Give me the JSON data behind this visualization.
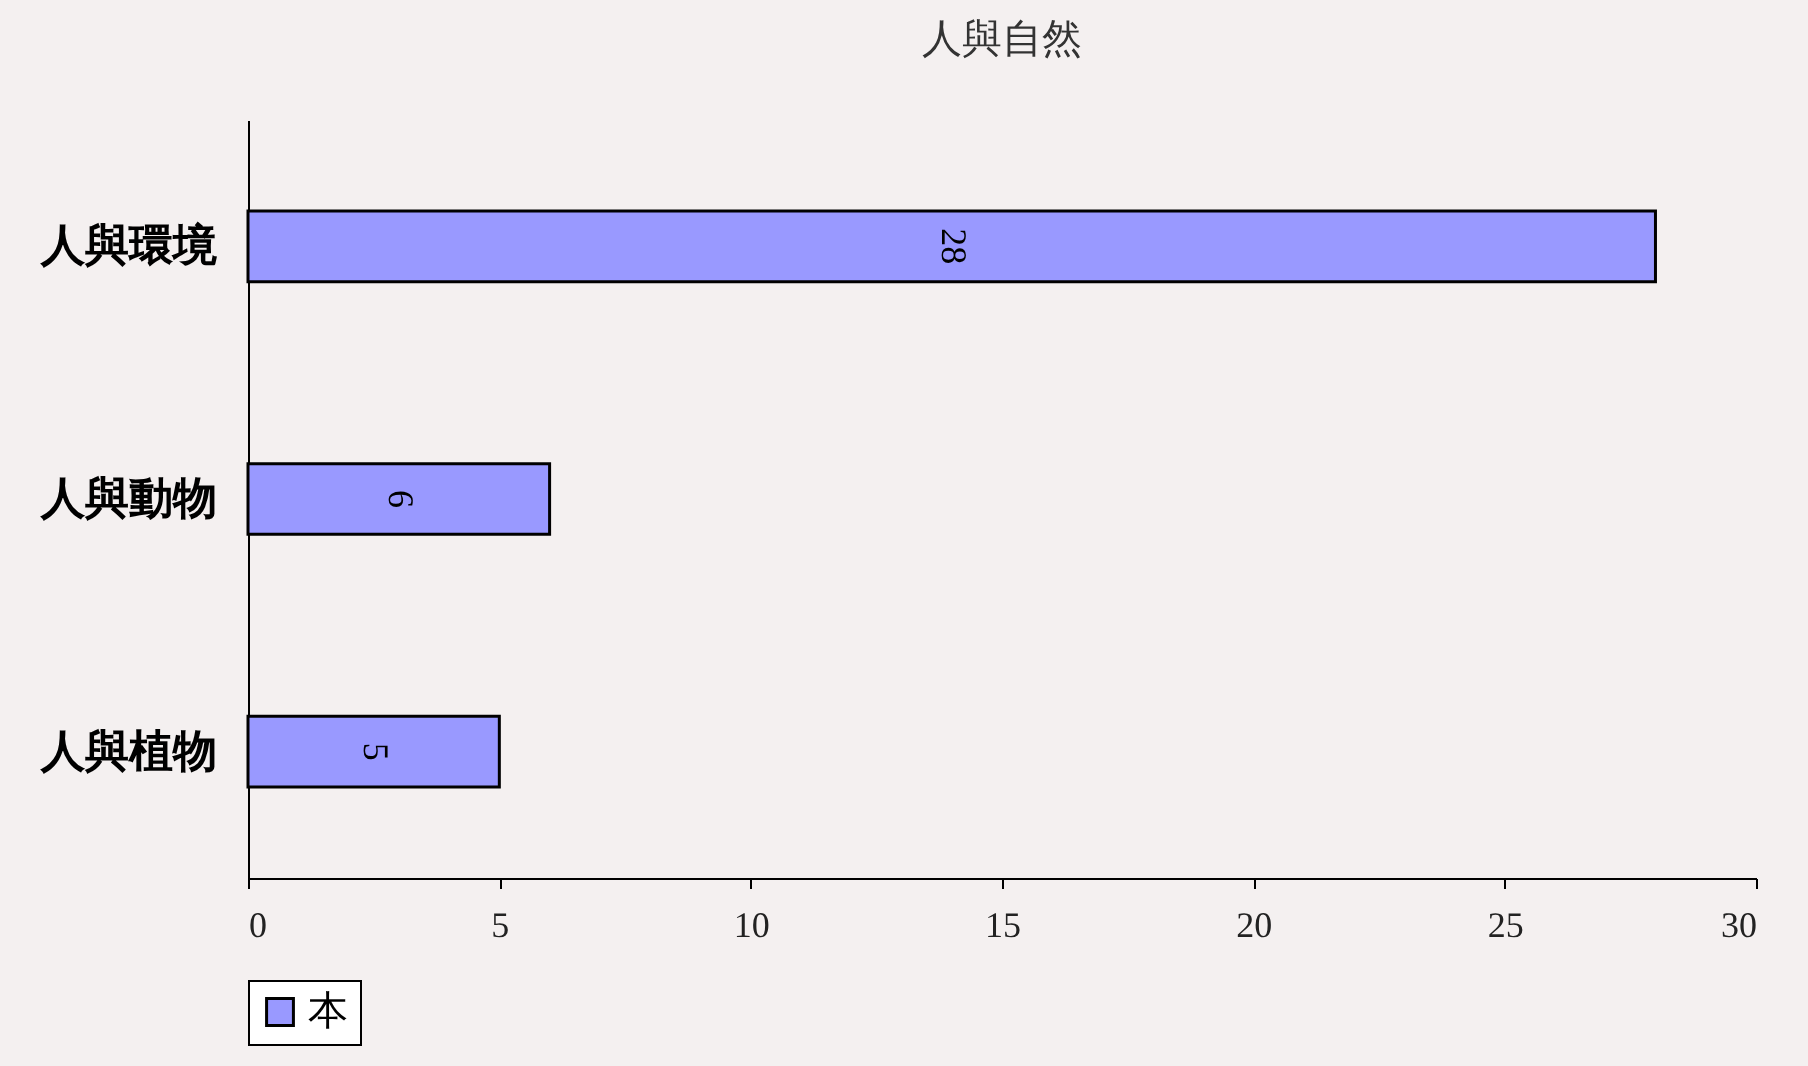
{
  "chart_data": {
    "type": "bar",
    "orientation": "horizontal",
    "title": "人與自然",
    "categories": [
      "人與環境",
      "人與動物",
      "人與植物"
    ],
    "series": [
      {
        "name": "本",
        "color": "#9999ff",
        "values": [
          28,
          6,
          5
        ]
      }
    ],
    "xlim": [
      0,
      30
    ],
    "xticks": [
      0,
      5,
      10,
      15,
      20,
      25,
      30
    ],
    "data_labels": true,
    "grid": false,
    "legend": "bottom"
  }
}
